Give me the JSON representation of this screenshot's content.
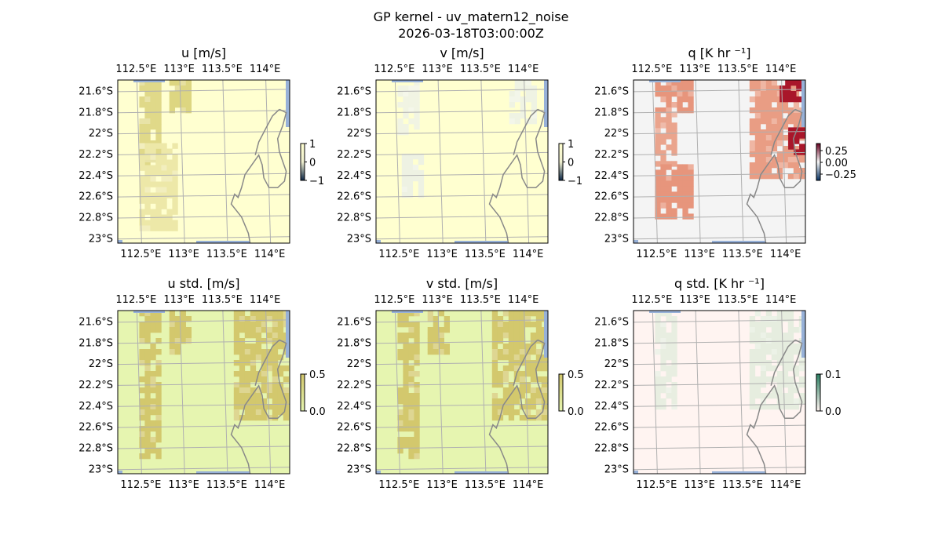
{
  "figure": {
    "title": "GP kernel - uv_matern12_noise",
    "timestamp": "2026-03-18T03:00:00Z"
  },
  "colors": {
    "land": "#ffffd0",
    "coast": "#888888",
    "grid": "#b0b0b0",
    "sea": "#97b1d8",
    "u_fill": "#d3cb6a",
    "v_fill": "#dfe8df",
    "q_warm": "#e37f63",
    "q_hot": "#a9162a",
    "q_bg": "#f4f4f4",
    "std_fill": "#d3c86d",
    "std_bg": "#e6f5b0",
    "qstd_bg": "#fff4f1",
    "qstd_fill": "#dfe9d9"
  },
  "chart_data": [
    {
      "type": "heatmap",
      "title": "u [m/s]",
      "x_ticks": [
        "112.5°E",
        "113°E",
        "113.5°E",
        "114°E"
      ],
      "y_ticks": [
        "21.6°S",
        "21.8°S",
        "22°S",
        "22.2°S",
        "22.4°S",
        "22.6°S",
        "22.8°S",
        "23°S"
      ],
      "colorbar": {
        "ticks": [
          "1",
          "0",
          "−1"
        ],
        "range": [
          -1,
          1
        ]
      },
      "background": "land",
      "patches": [
        {
          "lon": [
            112.5,
            112.75
          ],
          "lat": [
            -21.5,
            -22.3
          ],
          "level": 0.6
        },
        {
          "lon": [
            112.85,
            113.1
          ],
          "lat": [
            -21.5,
            -21.8
          ],
          "level": 0.7
        },
        {
          "lon": [
            112.5,
            112.9
          ],
          "lat": [
            -22.1,
            -22.9
          ],
          "level": 0.2
        }
      ]
    },
    {
      "type": "heatmap",
      "title": "v [m/s]",
      "x_ticks": [
        "112.5°E",
        "113°E",
        "113.5°E",
        "114°E"
      ],
      "y_ticks": [
        "21.6°S",
        "21.8°S",
        "22°S",
        "22.2°S",
        "22.4°S",
        "22.6°S",
        "22.8°S",
        "23°S"
      ],
      "colorbar": {
        "ticks": [
          "1",
          "0",
          "−1"
        ],
        "range": [
          -1,
          1
        ]
      },
      "background": "land",
      "patches": [
        {
          "lon": [
            112.5,
            112.75
          ],
          "lat": [
            -21.5,
            -22.0
          ],
          "level": 0.15
        },
        {
          "lon": [
            112.55,
            112.8
          ],
          "lat": [
            -22.2,
            -22.6
          ],
          "level": 0.3
        },
        {
          "lon": [
            113.8,
            114.1
          ],
          "lat": [
            -21.5,
            -21.9
          ],
          "level": 0.25
        }
      ]
    },
    {
      "type": "heatmap",
      "title": "q [K hr ⁻¹]",
      "x_ticks": [
        "112.5°E",
        "113°E",
        "113.5°E",
        "114°E"
      ],
      "y_ticks": [
        "21.6°S",
        "21.8°S",
        "22°S",
        "22.2°S",
        "22.4°S",
        "22.6°S",
        "22.8°S",
        "23°S"
      ],
      "colorbar": {
        "ticks": [
          "0.25",
          "0.00",
          "−0.25"
        ],
        "range": [
          -0.35,
          0.35
        ]
      },
      "background": "q_bg",
      "patches": [
        {
          "lon": [
            112.5,
            112.9
          ],
          "lat": [
            -21.5,
            -21.8
          ],
          "level": 0.7
        },
        {
          "lon": [
            112.5,
            112.75
          ],
          "lat": [
            -21.8,
            -22.3
          ],
          "level": 0.5
        },
        {
          "lon": [
            112.5,
            112.9
          ],
          "lat": [
            -22.3,
            -22.8
          ],
          "level": 0.7
        },
        {
          "lon": [
            113.6,
            114.2
          ],
          "lat": [
            -21.5,
            -22.4
          ],
          "level": 0.6
        },
        {
          "lon": [
            113.95,
            114.2
          ],
          "lat": [
            -21.5,
            -21.7
          ],
          "level": 0.95
        },
        {
          "lon": [
            114.05,
            114.2
          ],
          "lat": [
            -21.95,
            -22.2
          ],
          "level": 1.0
        }
      ]
    },
    {
      "type": "heatmap",
      "title": "u std. [m/s]",
      "x_ticks": [
        "112.5°E",
        "113°E",
        "113.5°E",
        "114°E"
      ],
      "y_ticks": [
        "21.6°S",
        "21.8°S",
        "22°S",
        "22.2°S",
        "22.4°S",
        "22.6°S",
        "22.8°S",
        "23°S"
      ],
      "colorbar": {
        "ticks": [
          "0.5",
          "0.0"
        ],
        "range": [
          0,
          0.5
        ]
      },
      "background": "std_bg",
      "patches": [
        {
          "lon": [
            112.5,
            112.75
          ],
          "lat": [
            -21.5,
            -22.9
          ],
          "level": 0.8
        },
        {
          "lon": [
            112.85,
            113.1
          ],
          "lat": [
            -21.5,
            -21.9
          ],
          "level": 0.8
        },
        {
          "lon": [
            113.6,
            114.2
          ],
          "lat": [
            -21.5,
            -22.5
          ],
          "level": 0.8
        }
      ]
    },
    {
      "type": "heatmap",
      "title": "v std. [m/s]",
      "x_ticks": [
        "112.5°E",
        "113°E",
        "113.5°E",
        "114°E"
      ],
      "y_ticks": [
        "21.6°S",
        "21.8°S",
        "22°S",
        "22.2°S",
        "22.4°S",
        "22.6°S",
        "22.8°S",
        "23°S"
      ],
      "colorbar": {
        "ticks": [
          "0.5",
          "0.0"
        ],
        "range": [
          0,
          0.5
        ]
      },
      "background": "std_bg",
      "patches": [
        {
          "lon": [
            112.5,
            112.75
          ],
          "lat": [
            -21.5,
            -22.9
          ],
          "level": 0.8
        },
        {
          "lon": [
            112.85,
            113.1
          ],
          "lat": [
            -21.5,
            -21.9
          ],
          "level": 0.8
        },
        {
          "lon": [
            113.6,
            114.2
          ],
          "lat": [
            -21.5,
            -22.5
          ],
          "level": 0.8
        }
      ]
    },
    {
      "type": "heatmap",
      "title": "q std. [K hr ⁻¹]",
      "x_ticks": [
        "112.5°E",
        "113°E",
        "113.5°E",
        "114°E"
      ],
      "y_ticks": [
        "21.6°S",
        "21.8°S",
        "22°S",
        "22.2°S",
        "22.4°S",
        "22.6°S",
        "22.8°S",
        "23°S"
      ],
      "colorbar": {
        "ticks": [
          "0.1",
          "0.0"
        ],
        "range": [
          0,
          0.1
        ]
      },
      "background": "qstd_bg",
      "patches": [
        {
          "lon": [
            112.5,
            112.75
          ],
          "lat": [
            -21.5,
            -22.4
          ],
          "level": 0.15
        },
        {
          "lon": [
            113.6,
            114.2
          ],
          "lat": [
            -21.5,
            -22.4
          ],
          "level": 0.25
        }
      ]
    }
  ]
}
